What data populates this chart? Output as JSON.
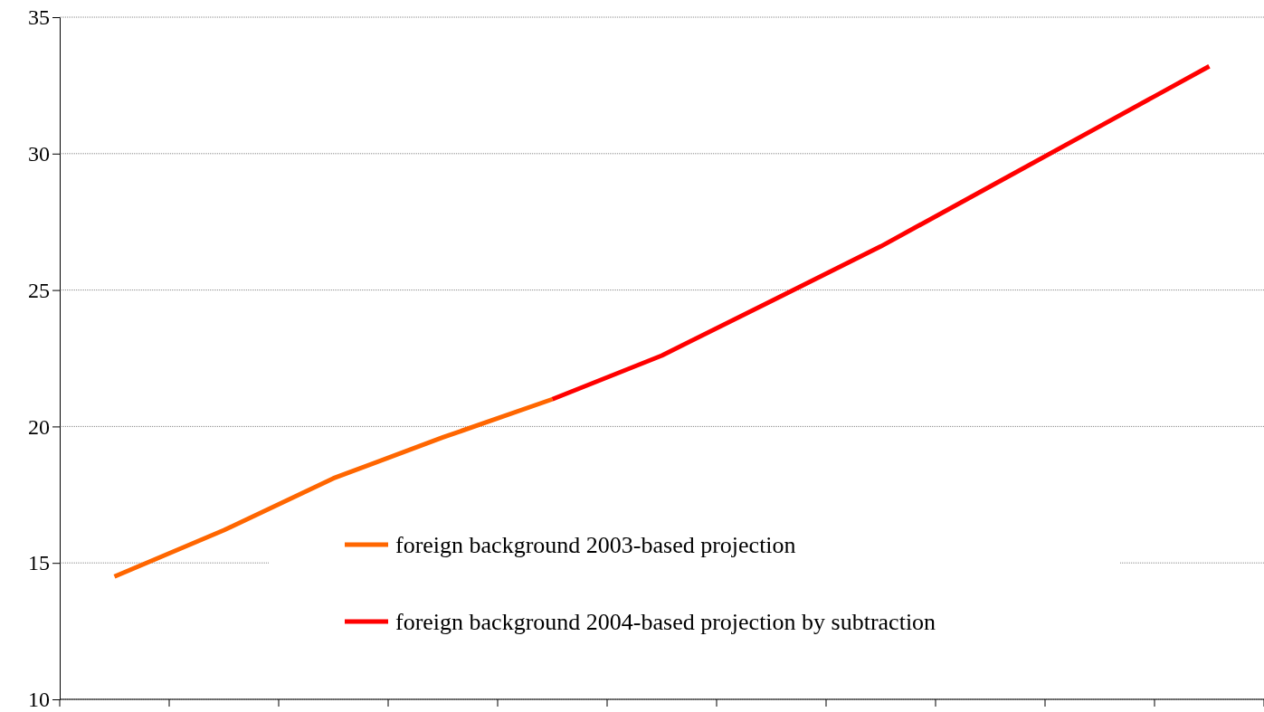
{
  "chart_data": {
    "type": "line",
    "categories": [
      null,
      null,
      null,
      null,
      null,
      null,
      null,
      null,
      null,
      null,
      null
    ],
    "series": [
      {
        "name": "foreign background 2003-based projection",
        "color": "#ff6600",
        "values": [
          14.5,
          16.2,
          18.1,
          19.6,
          21.0,
          null,
          null,
          null,
          null,
          null,
          null
        ]
      },
      {
        "name": "foreign background 2004-based projection by subtraction",
        "color": "#ff0000",
        "values": [
          null,
          null,
          null,
          null,
          21.0,
          22.6,
          24.6,
          26.6,
          28.8,
          31.0,
          33.2
        ]
      }
    ],
    "ylim": [
      10,
      35
    ],
    "yticks": [
      10,
      15,
      20,
      25,
      30,
      35
    ],
    "grid": "y",
    "legend": "bottom",
    "tick_labels": "y",
    "marker": "none",
    "line_style": "solid"
  }
}
